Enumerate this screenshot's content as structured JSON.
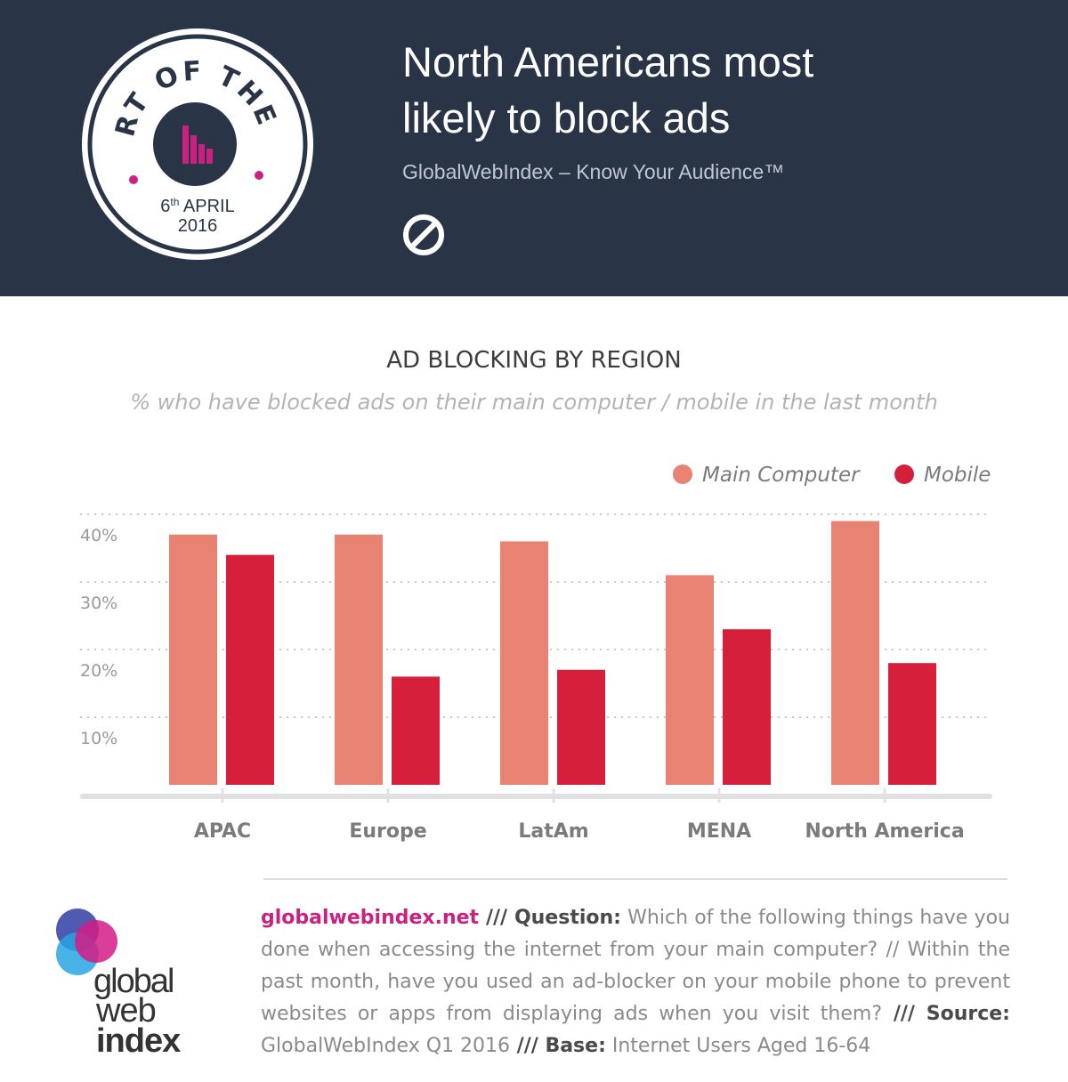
{
  "header": {
    "badge_text": "CHART OF THE DAY",
    "badge_day": "6",
    "badge_day_suffix": "th",
    "badge_month": " APRIL",
    "badge_year": "2016",
    "headline_line1": "North Americans most",
    "headline_line2": "likely to block ads",
    "tagline": "GlobalWebIndex – Know Your Audience™",
    "icon": "no-entry-icon"
  },
  "colors": {
    "header_bg": "#293546",
    "main_computer": "#e88373",
    "mobile": "#d6203b",
    "accent": "#c8217f"
  },
  "chart_data": {
    "type": "bar",
    "title": "AD BLOCKING BY REGION",
    "subtitle": "% who have blocked ads on their main computer / mobile in the last month",
    "categories": [
      "APAC",
      "Europe",
      "LatAm",
      "MENA",
      "North America"
    ],
    "series": [
      {
        "name": "Main Computer",
        "values": [
          37,
          37,
          36,
          31,
          39
        ]
      },
      {
        "name": "Mobile",
        "values": [
          34,
          16,
          17,
          23,
          18
        ]
      }
    ],
    "yticks": [
      10,
      20,
      30,
      40
    ],
    "ytick_labels": [
      "10%",
      "20%",
      "30%",
      "40%"
    ],
    "ylim": [
      0,
      40
    ],
    "grid": true,
    "legend_position": "top-right"
  },
  "footer": {
    "logo_line1": "global",
    "logo_line2": "web",
    "logo_line3": "index",
    "site": "globalwebindex.net",
    "sep1": " /// ",
    "question_label": "Question:",
    "question_text": " Which of the following things have you done when accessing the internet from your main computer? // Within the past month, have you used an ad-blocker on your mobile phone to prevent websites or apps from displaying ads when you visit them?",
    "sep2": " /// ",
    "source_label": "Source:",
    "source_text": " GlobalWebIndex Q1 2016",
    "sep3": " /// ",
    "base_label": "Base:",
    "base_text": " Internet Users Aged 16-64"
  }
}
